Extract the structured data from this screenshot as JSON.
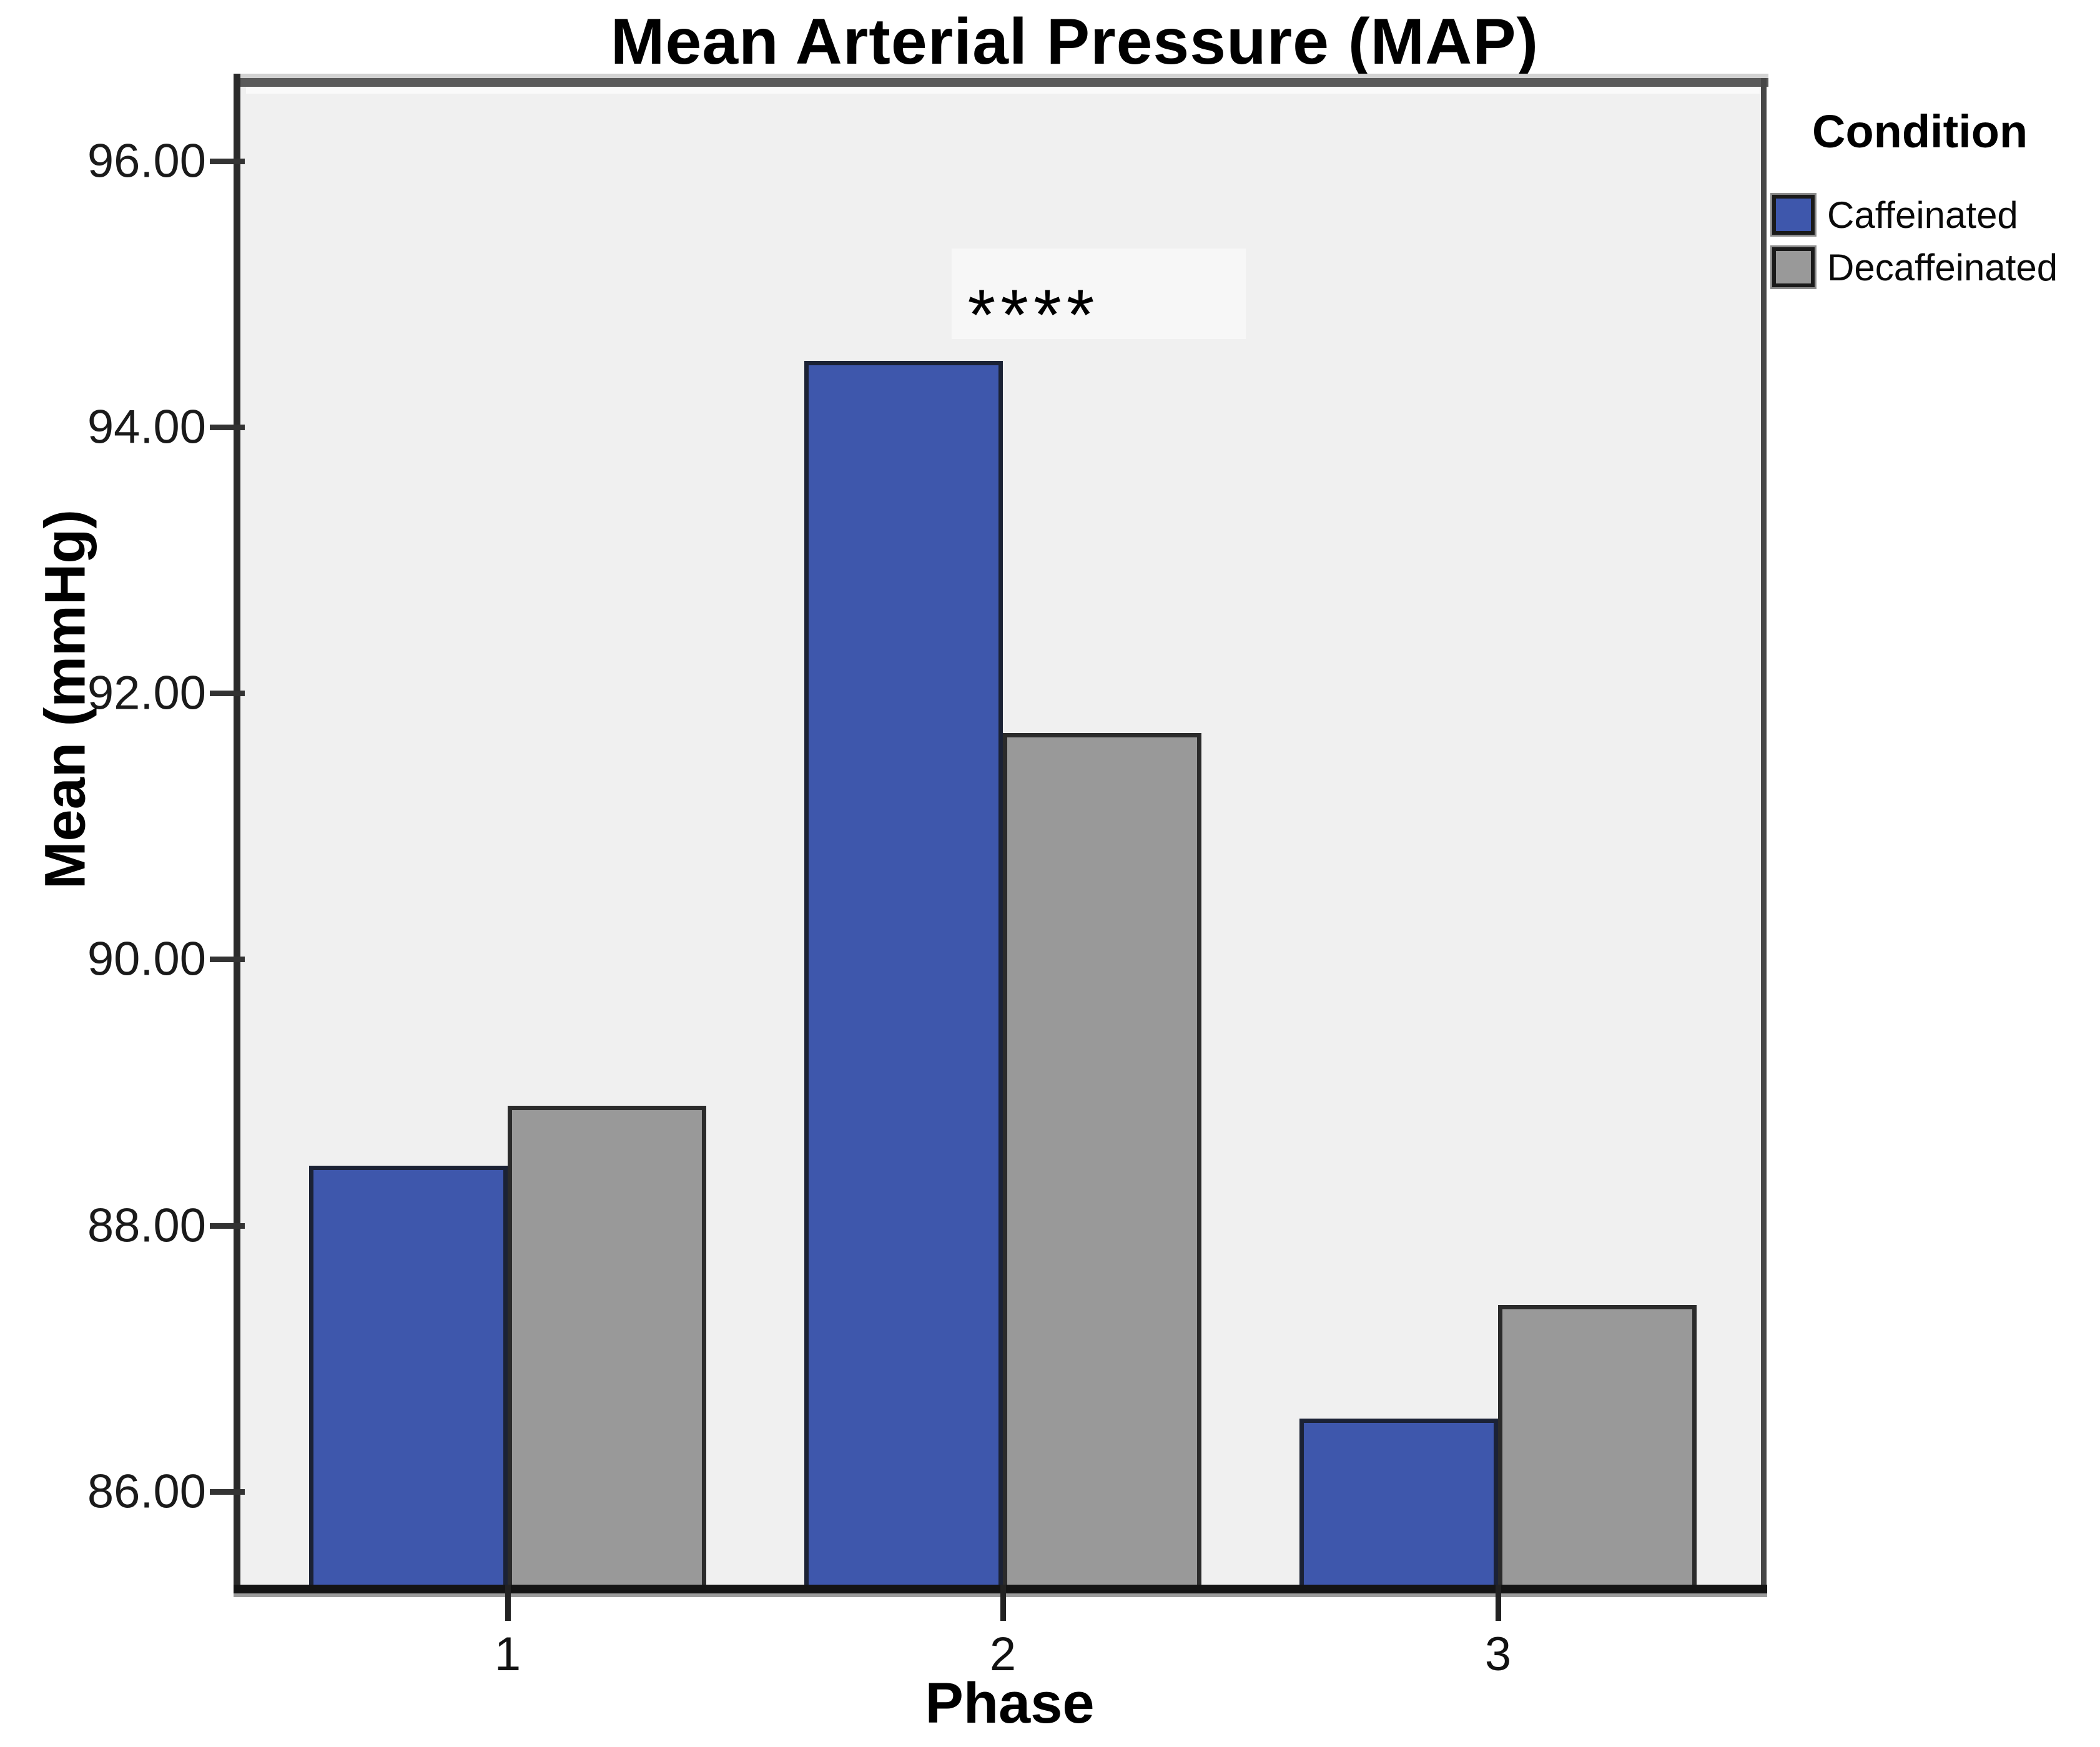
{
  "page": {
    "background": "#ffffff"
  },
  "chart_data": {
    "type": "bar",
    "title": "Mean Arterial Pressure (MAP)",
    "xlabel": "Phase",
    "ylabel": "Mean (mmHg)",
    "categories": [
      "1",
      "2",
      "3"
    ],
    "series": [
      {
        "name": "Caffeinated",
        "color": "#3e57ac",
        "border": "#1b2235",
        "values": [
          88.45,
          94.5,
          86.55
        ]
      },
      {
        "name": "Decaffeinated",
        "color": "#999999",
        "border": "#2b2b2b",
        "values": [
          88.9,
          91.7,
          87.4
        ]
      }
    ],
    "ylim": [
      85.3,
      96.6
    ],
    "yticks": [
      "96.00",
      "94.00",
      "92.00",
      "90.00",
      "88.00",
      "86.00"
    ],
    "ytick_values": [
      96,
      94,
      92,
      90,
      88,
      86
    ],
    "legend_title": "Condition",
    "legend_position": "top-right",
    "grid": false,
    "plot_background": "#f0f0f0",
    "annotation": {
      "text": "****",
      "above_category": "2"
    }
  }
}
